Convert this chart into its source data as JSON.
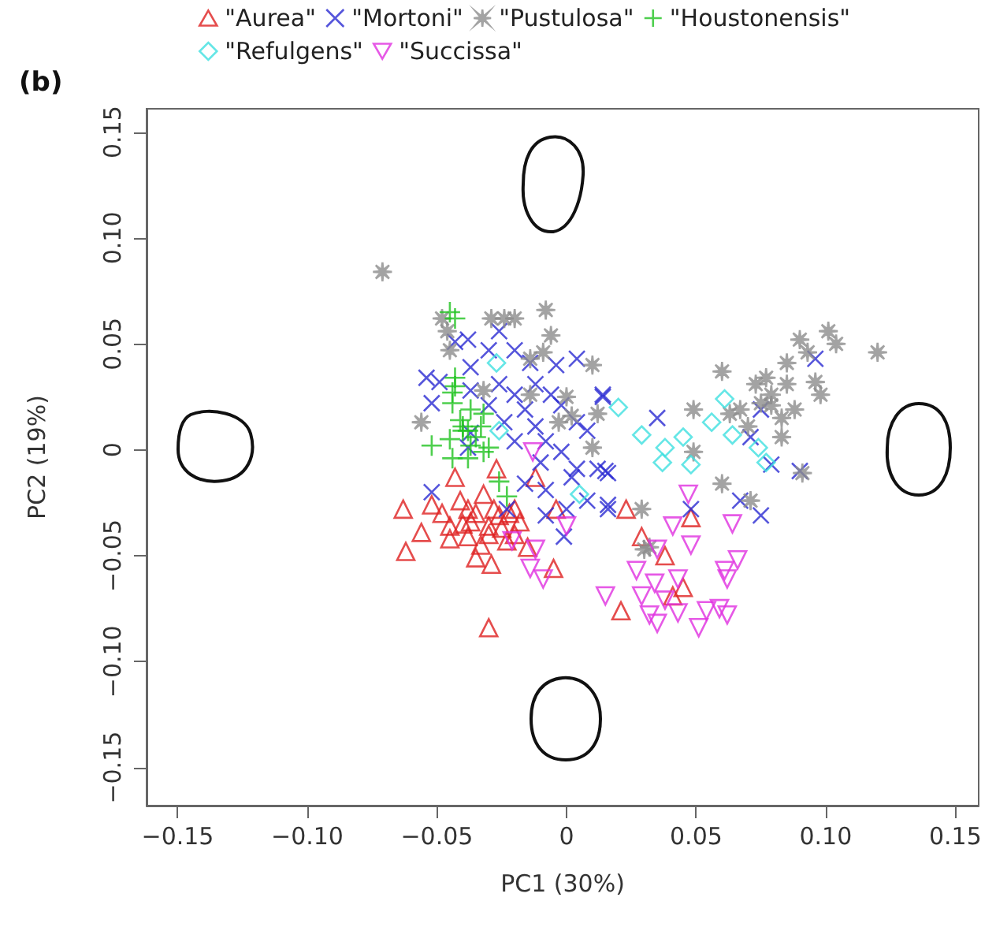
{
  "chart_data": {
    "type": "scatter",
    "xlabel": "PC1 (30%)",
    "ylabel": "PC2 (19%)",
    "annotations": [
      "(b)"
    ],
    "legend": "top",
    "grid": false,
    "xlim": [
      -0.162,
      0.159
    ],
    "ylim": [
      -0.168,
      0.161
    ],
    "xticks": [
      {
        "value": -0.15,
        "label": "−0.15"
      },
      {
        "value": -0.1,
        "label": "−0.10"
      },
      {
        "value": -0.05,
        "label": "−0.05"
      },
      {
        "value": 0,
        "label": "0"
      },
      {
        "value": 0.05,
        "label": "0.05"
      },
      {
        "value": 0.1,
        "label": "0.10"
      },
      {
        "value": 0.15,
        "label": "0.15"
      }
    ],
    "yticks": [
      {
        "value": -0.15,
        "label": "−0.15"
      },
      {
        "value": -0.1,
        "label": "−0.10"
      },
      {
        "value": -0.05,
        "label": "−0.05"
      },
      {
        "value": 0,
        "label": "0"
      },
      {
        "value": 0.05,
        "label": "0.05"
      },
      {
        "value": 0.1,
        "label": "0.10"
      },
      {
        "value": 0.15,
        "label": "0.15"
      }
    ],
    "series": [
      {
        "name": "\"Aurea\"",
        "color": "#df2020",
        "marker": "triangle",
        "x": [
          -0.063,
          -0.062,
          -0.056,
          -0.052,
          -0.048,
          -0.045,
          -0.043,
          -0.041,
          -0.038,
          -0.037,
          -0.035,
          -0.032,
          -0.03,
          -0.029,
          -0.027,
          -0.026,
          -0.023,
          -0.02,
          -0.018,
          -0.015,
          -0.012,
          -0.03,
          -0.005,
          -0.004,
          0.023,
          0.029,
          0.021,
          0.038,
          0.048,
          0.041,
          0.045,
          -0.04,
          -0.035,
          -0.03,
          -0.025,
          -0.038,
          -0.033,
          -0.022,
          -0.045,
          -0.028,
          -0.02
        ],
        "values": [
          -0.028,
          -0.048,
          -0.039,
          -0.026,
          -0.03,
          -0.036,
          -0.013,
          -0.024,
          -0.041,
          -0.034,
          -0.051,
          -0.021,
          -0.036,
          -0.054,
          -0.009,
          -0.031,
          -0.043,
          -0.028,
          -0.034,
          -0.046,
          -0.013,
          -0.084,
          -0.056,
          -0.028,
          -0.028,
          -0.041,
          -0.076,
          -0.05,
          -0.032,
          -0.069,
          -0.065,
          -0.035,
          -0.03,
          -0.04,
          -0.037,
          -0.028,
          -0.045,
          -0.03,
          -0.042,
          -0.028,
          -0.04
        ]
      },
      {
        "name": "\"Mortoni\"",
        "color": "#2a2ad2",
        "marker": "cross",
        "x": [
          -0.026,
          -0.043,
          -0.038,
          -0.054,
          -0.049,
          -0.052,
          -0.03,
          -0.02,
          -0.014,
          -0.004,
          0.004,
          -0.037,
          -0.026,
          -0.012,
          -0.037,
          -0.02,
          -0.006,
          -0.03,
          -0.016,
          -0.002,
          0.014,
          -0.024,
          -0.012,
          0.004,
          -0.037,
          -0.008,
          -0.02,
          -0.002,
          0.008,
          -0.01,
          0.004,
          0.012,
          0.016,
          0.002,
          -0.016,
          -0.008,
          -0.008,
          0,
          0.008,
          0.016,
          -0.001,
          -0.023,
          -0.052,
          -0.038,
          0.014,
          0.035,
          0.015,
          0.016,
          0.048,
          0.067,
          0.075,
          0.071,
          0.075,
          0.079,
          0.09,
          0.096
        ],
        "values": [
          0.056,
          0.051,
          0.052,
          0.034,
          0.032,
          0.022,
          0.047,
          0.047,
          0.041,
          0.04,
          0.043,
          0.039,
          0.031,
          0.031,
          0.028,
          0.026,
          0.026,
          0.021,
          0.019,
          0.021,
          0.026,
          0.013,
          0.011,
          0.013,
          0.008,
          0.004,
          0.004,
          -0.001,
          0.009,
          -0.006,
          -0.009,
          -0.009,
          -0.011,
          -0.013,
          -0.016,
          -0.019,
          -0.031,
          -0.028,
          -0.024,
          -0.026,
          -0.041,
          -0.028,
          -0.02,
          0.001,
          0.025,
          0.015,
          -0.01,
          -0.028,
          -0.028,
          -0.024,
          -0.031,
          0.006,
          0.019,
          -0.007,
          -0.01,
          0.043
        ]
      },
      {
        "name": "\"Pustulosa\"",
        "color": "#8c8c8c",
        "marker": "star",
        "x": [
          -0.071,
          -0.048,
          -0.029,
          -0.024,
          -0.02,
          -0.008,
          -0.006,
          -0.009,
          -0.014,
          -0.046,
          -0.045,
          0.01,
          -0.056,
          -0.032,
          -0.014,
          0,
          0.002,
          0.012,
          -0.003,
          0.01,
          0.029,
          0.03,
          0.06,
          0.049,
          0.063,
          0.067,
          0.07,
          0.049,
          0.06,
          0.071,
          0.073,
          0.077,
          0.079,
          0.083,
          0.083,
          0.085,
          0.088,
          0.085,
          0.09,
          0.093,
          0.096,
          0.098,
          0.101,
          0.104,
          0.12,
          0.091,
          0.075,
          0.079,
          0.032
        ],
        "values": [
          0.084,
          0.062,
          0.062,
          0.062,
          0.062,
          0.066,
          0.054,
          0.046,
          0.043,
          0.056,
          0.047,
          0.04,
          0.013,
          0.028,
          0.026,
          0.025,
          0.016,
          0.017,
          0.013,
          0.001,
          -0.028,
          -0.047,
          0.037,
          0.019,
          0.017,
          0.019,
          0.011,
          -0.001,
          -0.016,
          -0.024,
          0.031,
          0.034,
          0.026,
          0.015,
          0.006,
          0.031,
          0.019,
          0.041,
          0.052,
          0.046,
          0.032,
          0.026,
          0.056,
          0.05,
          0.046,
          -0.011,
          0.022,
          0.021,
          -0.046
        ]
      },
      {
        "name": "\"Houstonensis\"",
        "color": "#22c322",
        "marker": "plus",
        "x": [
          -0.043,
          -0.043,
          -0.044,
          -0.044,
          -0.041,
          -0.04,
          -0.052,
          -0.045,
          -0.044,
          -0.037,
          -0.038,
          -0.035,
          -0.032,
          -0.038,
          -0.026,
          -0.023,
          -0.032,
          -0.03,
          -0.037,
          -0.043,
          -0.04,
          -0.033,
          -0.045
        ],
        "values": [
          0.062,
          0.034,
          0.027,
          0.022,
          0.014,
          0.009,
          0.002,
          0.005,
          -0.004,
          0.019,
          0.009,
          0.006,
          -0.001,
          -0.004,
          -0.015,
          -0.022,
          0.017,
          0.001,
          0.002,
          0.03,
          0.011,
          0.011,
          0.065
        ]
      },
      {
        "name": "\"Refulgens\"",
        "color": "#3fe0e0",
        "marker": "diamond",
        "x": [
          -0.027,
          -0.026,
          0.005,
          0.02,
          0.029,
          0.038,
          0.045,
          0.037,
          0.048,
          0.056,
          0.061,
          0.064,
          0.074,
          0.077
        ],
        "values": [
          0.041,
          0.009,
          -0.021,
          0.02,
          0.007,
          0.001,
          0.006,
          -0.006,
          -0.007,
          0.013,
          0.024,
          0.007,
          0.001,
          -0.006
        ]
      },
      {
        "name": "\"Succissa\"",
        "color": "#e030e0",
        "marker": "triangle-down",
        "x": [
          -0.013,
          0,
          -0.021,
          -0.012,
          -0.014,
          -0.009,
          0.015,
          0.047,
          0.041,
          0.064,
          0.048,
          0.035,
          0.027,
          0.066,
          0.061,
          0.062,
          0.043,
          0.034,
          0.029,
          0.038,
          0.043,
          0.032,
          0.035,
          0.051,
          0.054,
          0.059,
          0.062
        ],
        "values": [
          -0.001,
          -0.036,
          -0.043,
          -0.047,
          -0.056,
          -0.061,
          -0.069,
          -0.021,
          -0.036,
          -0.035,
          -0.045,
          -0.047,
          -0.057,
          -0.052,
          -0.057,
          -0.061,
          -0.061,
          -0.063,
          -0.069,
          -0.071,
          -0.077,
          -0.078,
          -0.082,
          -0.084,
          -0.076,
          -0.075,
          -0.078
        ]
      }
    ]
  }
}
